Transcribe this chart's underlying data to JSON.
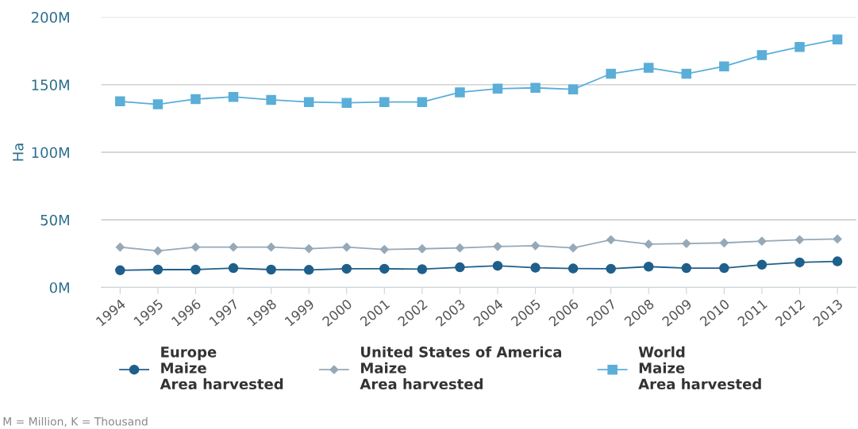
{
  "chart_data": {
    "type": "line",
    "ylabel": "Ha",
    "categories": [
      "1994",
      "1995",
      "1996",
      "1997",
      "1998",
      "1999",
      "2000",
      "2001",
      "2002",
      "2003",
      "2004",
      "2005",
      "2006",
      "2007",
      "2008",
      "2009",
      "2010",
      "2011",
      "2012",
      "2013"
    ],
    "series": [
      {
        "name": "Europe\nMaize\nArea harvested",
        "color": "#1f5f8b",
        "marker": "circle",
        "values": [
          12.7,
          13.2,
          13.2,
          14.3,
          13.2,
          13.0,
          13.8,
          13.8,
          13.5,
          14.9,
          16.0,
          14.6,
          14.0,
          13.8,
          15.4,
          14.3,
          14.3,
          16.8,
          18.5,
          19.3
        ]
      },
      {
        "name": "United States of America\nMaize\nArea harvested",
        "color": "#95a9b8",
        "marker": "diamond",
        "values": [
          29.8,
          27.0,
          29.8,
          29.8,
          29.8,
          28.7,
          29.8,
          28.1,
          28.6,
          29.2,
          30.3,
          30.9,
          29.2,
          35.3,
          32.0,
          32.5,
          33.0,
          34.2,
          35.3,
          35.8
        ]
      },
      {
        "name": "World\nMaize\nArea harvested",
        "color": "#5aaed8",
        "marker": "square",
        "values": [
          137.7,
          135.5,
          139.4,
          141.0,
          138.8,
          137.2,
          136.6,
          137.2,
          137.2,
          144.4,
          147.1,
          147.7,
          146.6,
          158.1,
          162.5,
          158.1,
          163.6,
          171.9,
          178.0,
          183.5
        ]
      }
    ],
    "ylim": [
      0,
      200
    ],
    "yticks": [
      {
        "value": 0,
        "label": "0M"
      },
      {
        "value": 50,
        "label": "50M"
      },
      {
        "value": 100,
        "label": "100M"
      },
      {
        "value": 150,
        "label": "150M"
      },
      {
        "value": 200,
        "label": "200M"
      }
    ],
    "grid": "y",
    "legend": "bottom",
    "annotations": [
      "M = Million, K = Thousand"
    ]
  }
}
